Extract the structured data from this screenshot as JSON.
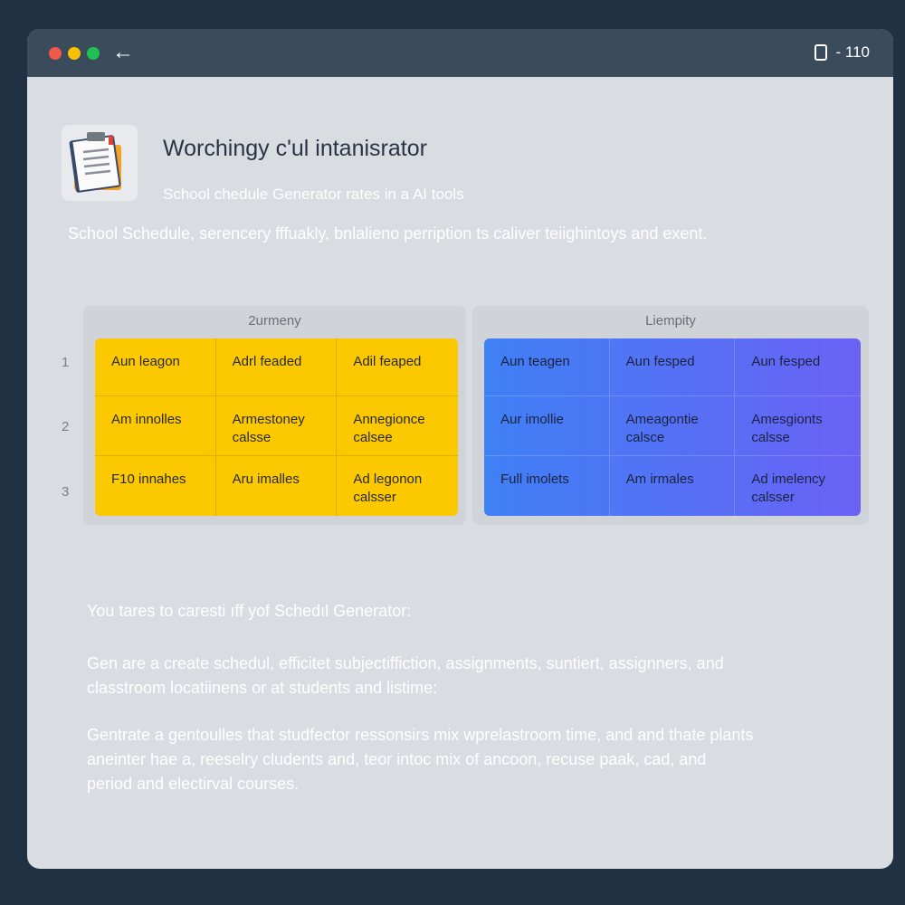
{
  "window": {
    "controls": [
      "close",
      "minimize",
      "maximize"
    ],
    "back_icon": "arrow-left-icon",
    "right_icon": "device-icon",
    "right_text": "- 110"
  },
  "header": {
    "title": "Worchingy c'ul intanisrator",
    "subtitle": "School chedule Generator rates in a AI tools",
    "description": "School Schedule, serencery fffuakly, bnlalieno perription ts caliver teiighintoys and exent."
  },
  "row_numbers": [
    "1",
    "2",
    "3"
  ],
  "tables": [
    {
      "title": "2urmeny",
      "color": "#fcc800",
      "cells": [
        [
          "Aun leagon",
          "Adrl feaded",
          "Adil feaped"
        ],
        [
          "Am innolles",
          "Armestoney calsse",
          "Annegionce calsee"
        ],
        [
          "F10 innahes",
          "Aru imalles",
          "Ad legonon calsser"
        ]
      ]
    },
    {
      "title": "Liempity",
      "color": "#3f80f5",
      "cells": [
        [
          "Aun teagen",
          "Aun fesped",
          "Aun fesped"
        ],
        [
          "Aur imollie",
          "Ameagontie calsce",
          "Amesgionts calsse"
        ],
        [
          "Full imolets",
          "Am irmales",
          "Ad imelency calsser"
        ]
      ]
    }
  ],
  "lower": {
    "heading": "You tares to carestі ıff yof Schedıl Generator:",
    "para1": [
      "Gen are a create schedul, efficitet subjectiffictіon, assignments, suntiert, assignners, and",
      "classtroom locatiinens or at students and listime:"
    ],
    "para2": [
      "Gentrate a gentoulles that studfector ressonsirs mix wprelastroom time, and and thate plants",
      "aneinter hae a, reeselry cludents and, teor intoc mix of ancoon, recuse paak, cad, and",
      "period and electirval courses."
    ]
  }
}
